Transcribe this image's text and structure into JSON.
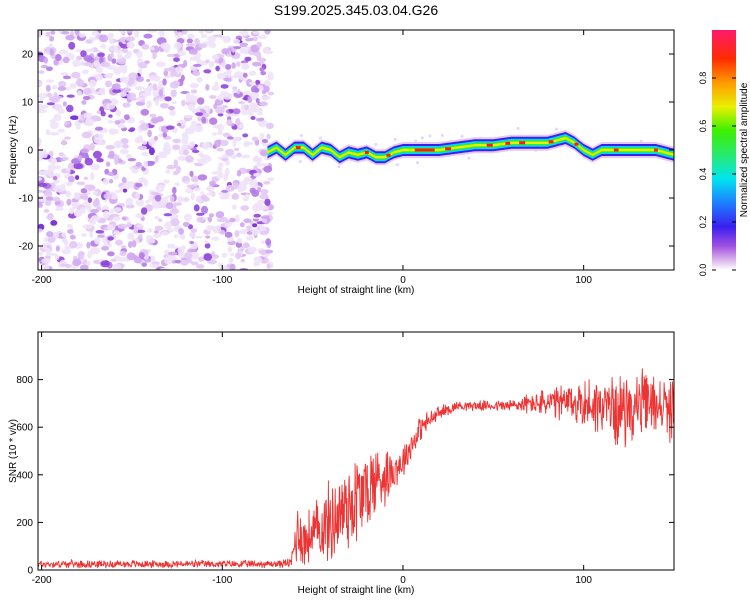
{
  "title": "S199.2025.345.03.04.G26",
  "chart_data": [
    {
      "type": "heatmap",
      "xlabel": "Height of straight line (km)",
      "ylabel": "Frequency (Hz)",
      "xlim": [
        -202,
        150
      ],
      "ylim": [
        -25,
        25
      ],
      "x_ticks": [
        -200,
        -100,
        0,
        100
      ],
      "y_ticks": [
        -20,
        -10,
        0,
        10,
        20
      ],
      "noise_region_x": [
        -202,
        -73
      ],
      "ridge": {
        "x": [
          -75,
          -70,
          -65,
          -60,
          -55,
          -50,
          -45,
          -40,
          -35,
          -30,
          -25,
          -20,
          -15,
          -10,
          -5,
          0,
          5,
          10,
          20,
          30,
          40,
          50,
          60,
          70,
          80,
          85,
          90,
          95,
          100,
          105,
          110,
          120,
          130,
          140,
          150
        ],
        "y": [
          -0.5,
          0.5,
          -1.0,
          0.5,
          0.5,
          -1.0,
          0.5,
          0.0,
          -1.5,
          -0.5,
          -1.0,
          -0.5,
          -1.5,
          -1.5,
          -0.5,
          0.0,
          0.0,
          0.0,
          0.0,
          0.5,
          1.0,
          1.0,
          1.5,
          1.5,
          1.5,
          2.0,
          2.5,
          1.5,
          0.0,
          -1.0,
          0.0,
          0.0,
          0.0,
          0.0,
          -1.0
        ]
      },
      "colorbar": {
        "label": "Normalized spectral amplitude",
        "range": [
          0,
          1
        ],
        "ticks": [
          "0.0",
          "0.2",
          "0.4",
          "0.6",
          "0.8"
        ],
        "tick_values": [
          0,
          0.2,
          0.4,
          0.6,
          0.8
        ]
      }
    },
    {
      "type": "line",
      "xlabel": "Height of straight line (km)",
      "ylabel": "SNR (10 * v/v)",
      "xlim": [
        -202,
        150
      ],
      "ylim": [
        0,
        1000
      ],
      "x_ticks": [
        -200,
        -100,
        0,
        100
      ],
      "y_ticks": [
        0,
        200,
        400,
        600,
        800
      ],
      "series": [
        {
          "name": "SNR",
          "color": "#ee3333",
          "x": [
            -202,
            -190,
            -180,
            -170,
            -160,
            -150,
            -140,
            -130,
            -120,
            -110,
            -100,
            -90,
            -80,
            -70,
            -62,
            -58,
            -55,
            -50,
            -45,
            -40,
            -35,
            -30,
            -25,
            -20,
            -15,
            -10,
            -5,
            0,
            5,
            10,
            20,
            30,
            40,
            50,
            60,
            70,
            80,
            90,
            100,
            110,
            120,
            130,
            140,
            150
          ],
          "y": [
            25,
            25,
            25,
            25,
            25,
            25,
            25,
            25,
            25,
            25,
            25,
            25,
            25,
            25,
            30,
            180,
            120,
            150,
            180,
            200,
            240,
            280,
            300,
            330,
            380,
            400,
            420,
            460,
            530,
            600,
            660,
            690,
            690,
            690,
            690,
            700,
            700,
            700,
            700,
            690,
            670,
            690,
            700,
            660
          ],
          "noise_amplitude": [
            15,
            15,
            15,
            15,
            15,
            15,
            15,
            15,
            15,
            15,
            15,
            15,
            15,
            15,
            20,
            150,
            110,
            120,
            140,
            170,
            180,
            200,
            200,
            170,
            160,
            120,
            80,
            70,
            60,
            50,
            30,
            20,
            20,
            20,
            30,
            40,
            60,
            80,
            100,
            120,
            140,
            140,
            120,
            120
          ]
        }
      ]
    }
  ]
}
